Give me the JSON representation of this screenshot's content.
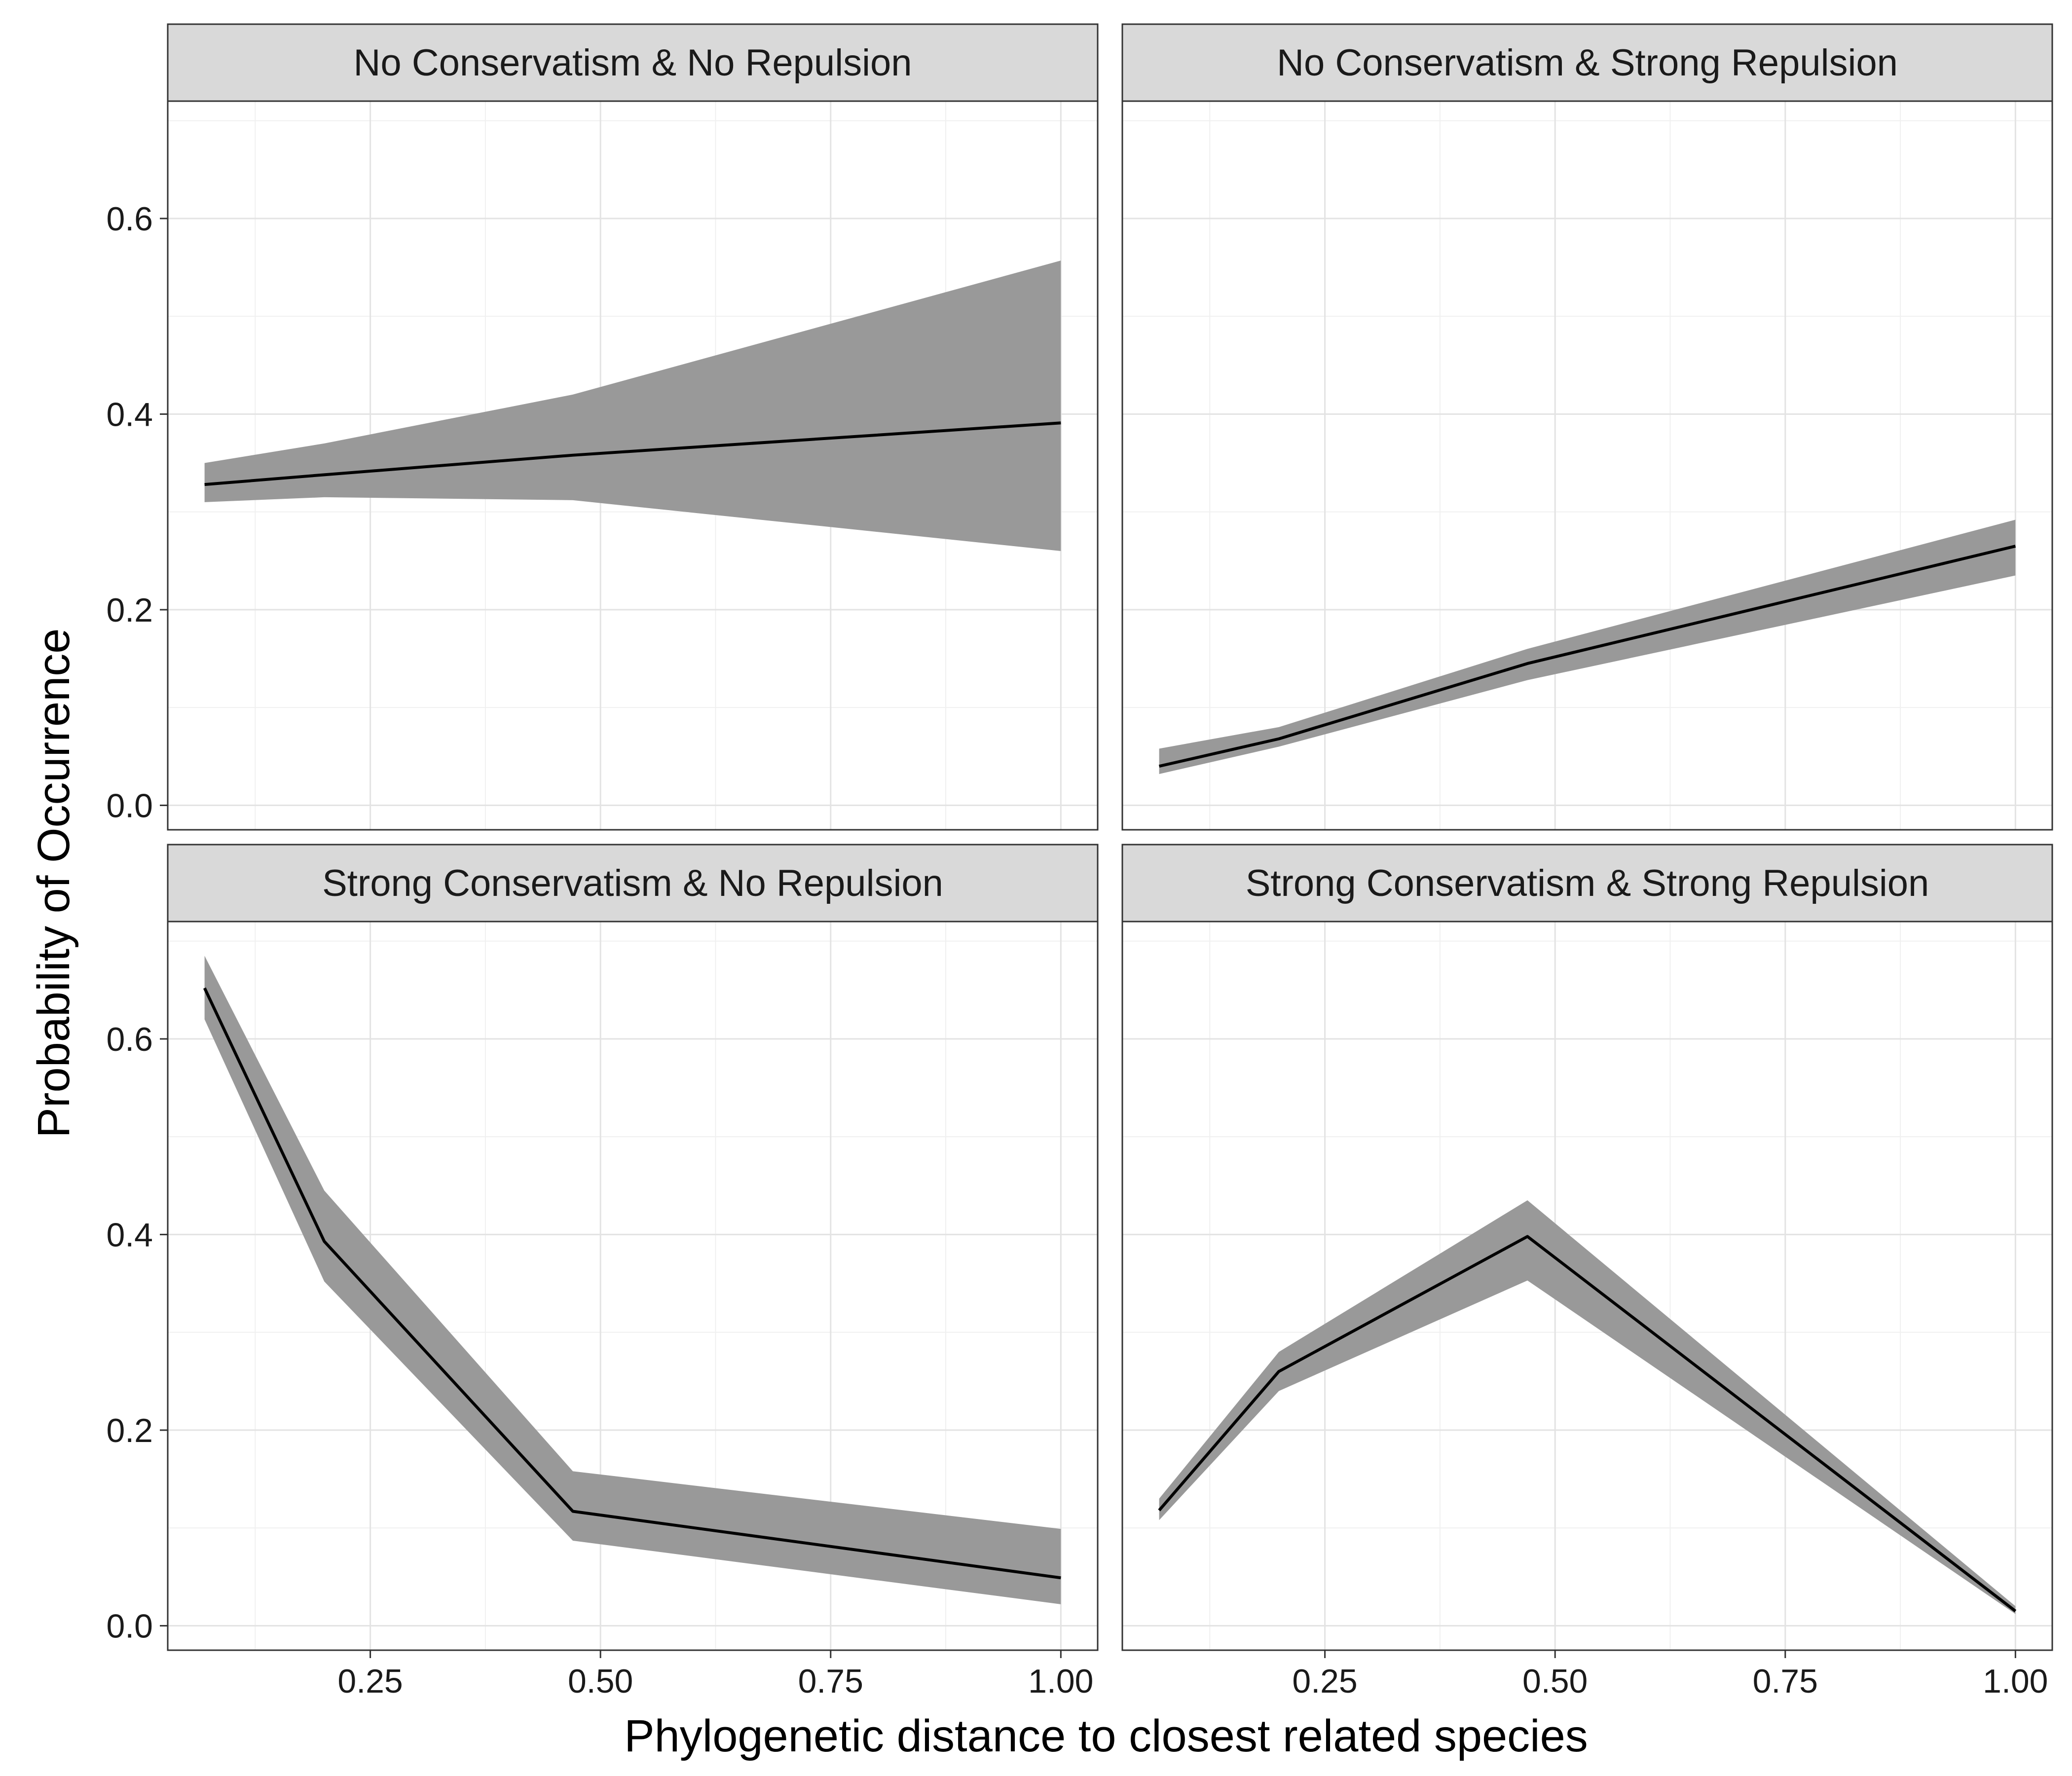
{
  "chart_data": {
    "type": "line",
    "xlabel": "Phylogenetic distance to closest related species",
    "ylabel": "Probability of Occurrence",
    "xlim": [
      0.03,
      1.04
    ],
    "ylim": [
      -0.025,
      0.72
    ],
    "x_ticks": [
      0.25,
      0.5,
      0.75,
      1.0
    ],
    "x_tick_labels": [
      "0.25",
      "0.50",
      "0.75",
      "1.00"
    ],
    "y_ticks": [
      0.0,
      0.2,
      0.4,
      0.6
    ],
    "y_tick_labels": [
      "0.0",
      "0.2",
      "0.4",
      "0.6"
    ],
    "grid": true,
    "ribbon_color": "#999999",
    "line_color": "#000000",
    "strip_color": "#d9d9d9",
    "panels": [
      {
        "title": "No Conservatism & No Repulsion",
        "x": [
          0.07,
          0.2,
          0.47,
          1.0
        ],
        "y": [
          0.328,
          0.338,
          0.358,
          0.391
        ],
        "lower": [
          0.31,
          0.315,
          0.312,
          0.26
        ],
        "upper": [
          0.35,
          0.37,
          0.42,
          0.557
        ]
      },
      {
        "title": "No Conservatism & Strong Repulsion",
        "x": [
          0.07,
          0.2,
          0.47,
          1.0
        ],
        "y": [
          0.04,
          0.068,
          0.145,
          0.265
        ],
        "lower": [
          0.032,
          0.06,
          0.128,
          0.235
        ],
        "upper": [
          0.058,
          0.08,
          0.16,
          0.292
        ]
      },
      {
        "title": "Strong Conservatism & No Repulsion",
        "x": [
          0.07,
          0.2,
          0.47,
          1.0
        ],
        "y": [
          0.652,
          0.393,
          0.117,
          0.049
        ],
        "lower": [
          0.62,
          0.352,
          0.087,
          0.022
        ],
        "upper": [
          0.685,
          0.445,
          0.158,
          0.099
        ]
      },
      {
        "title": "Strong Conservatism & Strong Repulsion",
        "x": [
          0.07,
          0.2,
          0.47,
          1.0
        ],
        "y": [
          0.118,
          0.26,
          0.398,
          0.015
        ],
        "lower": [
          0.108,
          0.24,
          0.353,
          0.012
        ],
        "upper": [
          0.13,
          0.28,
          0.435,
          0.02
        ]
      }
    ]
  }
}
